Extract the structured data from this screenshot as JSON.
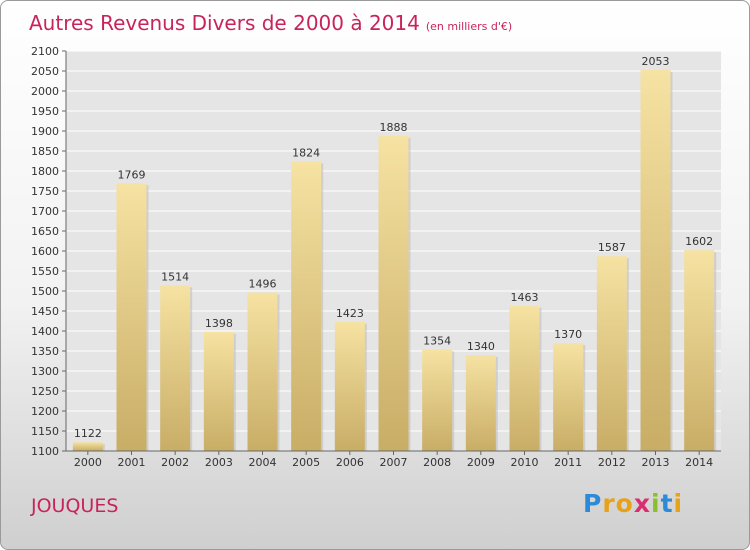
{
  "header": {
    "title": "Autres Revenus Divers de 2000 à 2014",
    "unit": "(en milliers d'€)"
  },
  "footer": {
    "commune": "JOUQUES",
    "logo_letters": [
      "P",
      "r",
      "o",
      "x",
      "i",
      "t",
      "i"
    ],
    "logo_colors": [
      "#2d8ad8",
      "#e8a21a",
      "#e8a21a",
      "#d92e6f",
      "#8bbf2e",
      "#2d8ad8",
      "#e8a21a"
    ]
  },
  "chart_data": {
    "type": "bar",
    "title": "Autres Revenus Divers de 2000 à 2014",
    "categories": [
      "2000",
      "2001",
      "2002",
      "2003",
      "2004",
      "2005",
      "2006",
      "2007",
      "2008",
      "2009",
      "2010",
      "2011",
      "2012",
      "2013",
      "2014"
    ],
    "values": [
      1122,
      1769,
      1514,
      1398,
      1496,
      1824,
      1423,
      1888,
      1354,
      1340,
      1463,
      1370,
      1587,
      2053,
      1602
    ],
    "ylim": [
      1100,
      2100
    ],
    "ytick_step": 50,
    "grid": true,
    "bar_color": "#e6cc84",
    "title_color": "#c8245a"
  }
}
